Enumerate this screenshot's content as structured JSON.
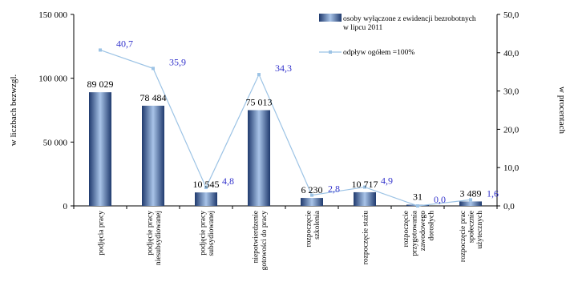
{
  "chart_data": {
    "type": "bar",
    "categories": [
      [
        "podjęcia pracy"
      ],
      [
        "podjęcie pracy",
        "niesubsydiowanej"
      ],
      [
        "podjęcie pracy",
        "subsydiowanej"
      ],
      [
        "niepotwierdzenie",
        "gotowości do pracy"
      ],
      [
        "rozpoczęcie",
        "szkolenia"
      ],
      [
        "rozpoczęcie stażu"
      ],
      [
        "rozpoczęcie",
        "przygotowania",
        "zawodowego",
        "dorosłych"
      ],
      [
        "rozpoczęcie prac",
        "społecznie",
        "użytecznych"
      ]
    ],
    "series": [
      {
        "name": "osoby wyłączone z ewidencji bezrobotnych w lipcu 2011",
        "axis": "left",
        "type": "bar",
        "values": [
          89029,
          78484,
          10545,
          75013,
          6230,
          10717,
          31,
          3489
        ],
        "labels": [
          "89 029",
          "78 484",
          "10 545",
          "75 013",
          "6 230",
          "10 717",
          "31",
          "3 489"
        ]
      },
      {
        "name": "odpływ ogółem =100%",
        "axis": "right",
        "type": "line",
        "values": [
          40.7,
          35.9,
          4.8,
          34.3,
          2.8,
          4.9,
          0.0,
          1.6
        ],
        "labels": [
          "40,7",
          "35,9",
          "4,8",
          "34,3",
          "2,8",
          "4,9",
          "0,0",
          "1,6"
        ]
      }
    ],
    "legend_lines": [
      [
        "osoby wyłączone z ewidencji bezrobotnych",
        "w lipcu 2011"
      ],
      [
        "odpływ ogółem =100%"
      ]
    ],
    "ylabel": "w liczbach bezwzgl.",
    "y2label": "w procentach",
    "ylim": [
      0,
      150000
    ],
    "y2lim": [
      0,
      50
    ],
    "yticks": [
      0,
      50000,
      100000,
      150000
    ],
    "ytick_labels": [
      "0",
      "50 000",
      "100 000",
      "150 000"
    ],
    "y2ticks": [
      0,
      10,
      20,
      30,
      40,
      50
    ],
    "y2tick_labels": [
      "0,0",
      "10,0",
      "20,0",
      "30,0",
      "40,0",
      "50,0"
    ],
    "legend_position": "top-right",
    "colors": {
      "bar_dark": "#1f3a6e",
      "bar_light": "#a9c4e8",
      "line": "#9cc3e5",
      "pct_label": "#3333cc"
    }
  }
}
